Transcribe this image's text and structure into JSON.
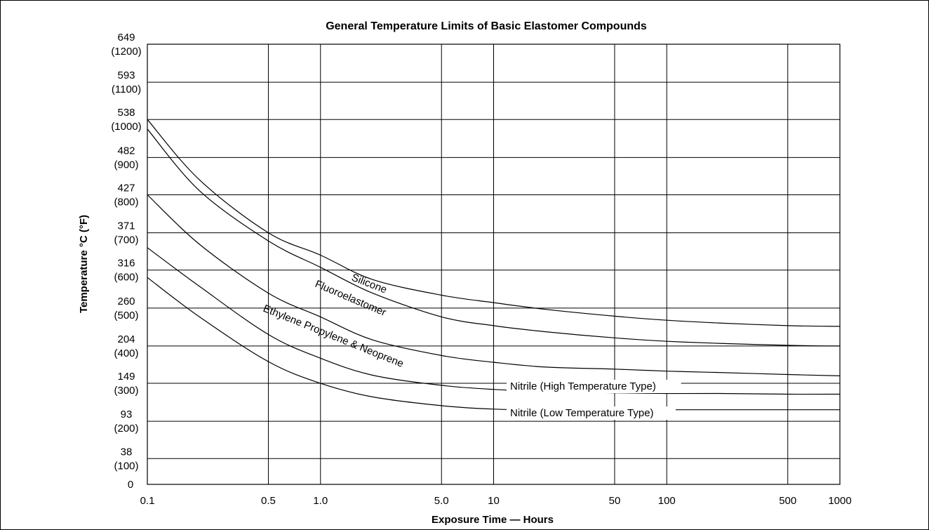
{
  "chart_data": {
    "type": "line",
    "title": "General Temperature Limits of Basic Elastomer Compounds",
    "xlabel": "Exposure Time — Hours",
    "ylabel": "Temperature °C (°F)",
    "x_scale": "log",
    "xlim": [
      0.1,
      1000
    ],
    "ylim": [
      0,
      649
    ],
    "grid": true,
    "x_ticks": [
      {
        "value": 0.1,
        "label": "0.1"
      },
      {
        "value": 0.5,
        "label": "0.5"
      },
      {
        "value": 1.0,
        "label": "1.0"
      },
      {
        "value": 5.0,
        "label": "5.0"
      },
      {
        "value": 10,
        "label": "10"
      },
      {
        "value": 50,
        "label": "50"
      },
      {
        "value": 100,
        "label": "100"
      },
      {
        "value": 500,
        "label": "500"
      },
      {
        "value": 1000,
        "label": "1000"
      }
    ],
    "y_ticks": [
      {
        "value": 649,
        "celsius": "649",
        "fahrenheit": "(1200)"
      },
      {
        "value": 593,
        "celsius": "593",
        "fahrenheit": "(1100)"
      },
      {
        "value": 538,
        "celsius": "538",
        "fahrenheit": "(1000)"
      },
      {
        "value": 482,
        "celsius": "482",
        "fahrenheit": "(900)"
      },
      {
        "value": 427,
        "celsius": "427",
        "fahrenheit": "(800)"
      },
      {
        "value": 371,
        "celsius": "371",
        "fahrenheit": "(700)"
      },
      {
        "value": 316,
        "celsius": "316",
        "fahrenheit": "(600)"
      },
      {
        "value": 260,
        "celsius": "260",
        "fahrenheit": "(500)"
      },
      {
        "value": 204,
        "celsius": "204",
        "fahrenheit": "(400)"
      },
      {
        "value": 149,
        "celsius": "149",
        "fahrenheit": "(300)"
      },
      {
        "value": 93,
        "celsius": "93",
        "fahrenheit": "(200)"
      },
      {
        "value": 38,
        "celsius": "38",
        "fahrenheit": "(100)"
      },
      {
        "value": 0,
        "celsius": "0",
        "fahrenheit": ""
      }
    ],
    "series": [
      {
        "name": "Silicone",
        "x": [
          0.1,
          0.2,
          0.5,
          1.0,
          2.0,
          5.0,
          10,
          20,
          50,
          100,
          200,
          500,
          1000
        ],
        "y": [
          538,
          449,
          371,
          338,
          302,
          279,
          268,
          258,
          248,
          242,
          238,
          234,
          233
        ]
      },
      {
        "name": "Fluoroelastomer",
        "x": [
          0.1,
          0.2,
          0.5,
          1.0,
          2.0,
          5.0,
          10,
          20,
          50,
          100,
          200,
          500,
          1000
        ],
        "y": [
          524,
          433,
          359,
          320,
          282,
          247,
          234,
          225,
          216,
          211,
          208,
          205,
          204
        ]
      },
      {
        "name": "Ethylene Propylene & Neoprene",
        "x": [
          0.1,
          0.2,
          0.5,
          1.0,
          2.0,
          5.0,
          10,
          20,
          50,
          100,
          200,
          500,
          1000
        ],
        "y": [
          427,
          354,
          282,
          247,
          213,
          190,
          180,
          173,
          170,
          167,
          165,
          162,
          160
        ]
      },
      {
        "name": "Nitrile (High Temperature Type)",
        "x": [
          0.1,
          0.2,
          0.5,
          1.0,
          2.0,
          5.0,
          10,
          20,
          50,
          100,
          200,
          500,
          1000
        ],
        "y": [
          349,
          292,
          221,
          186,
          161,
          146,
          140,
          137,
          135,
          134,
          134,
          133,
          133
        ]
      },
      {
        "name": "Nitrile (Low Temperature Type)",
        "x": [
          0.1,
          0.2,
          0.5,
          1.0,
          2.0,
          5.0,
          10,
          20,
          50,
          100,
          200,
          500,
          1000
        ],
        "y": [
          305,
          247,
          181,
          149,
          129,
          116,
          111,
          110,
          110,
          110,
          110,
          110,
          110
        ]
      }
    ],
    "annotations": [
      {
        "text": "Silicone",
        "series": "Silicone"
      },
      {
        "text": "Fluoroelastomer",
        "series": "Fluoroelastomer"
      },
      {
        "text": "Ethylene Propylene & Neoprene",
        "series": "Ethylene Propylene & Neoprene"
      },
      {
        "text": "Nitrile (High Temperature Type)",
        "series": "Nitrile (High Temperature Type)"
      },
      {
        "text": "Nitrile (Low Temperature Type)",
        "series": "Nitrile (Low Temperature Type)"
      }
    ]
  }
}
